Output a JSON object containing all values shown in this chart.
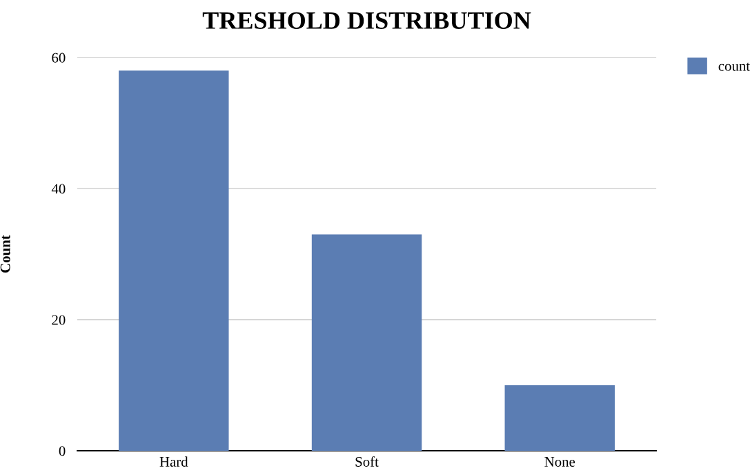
{
  "chart_data": {
    "type": "bar",
    "title": "TRESHOLD DISTRIBUTION",
    "ylabel": "Count",
    "categories": [
      "Hard",
      "Soft",
      "None"
    ],
    "series": [
      {
        "name": "count",
        "color": "#5b7db3",
        "values": [
          58,
          33,
          10
        ]
      }
    ],
    "ylim": [
      0,
      60
    ],
    "yticks": [
      0,
      20,
      40,
      60
    ],
    "grid": "y",
    "legend": "top right"
  }
}
